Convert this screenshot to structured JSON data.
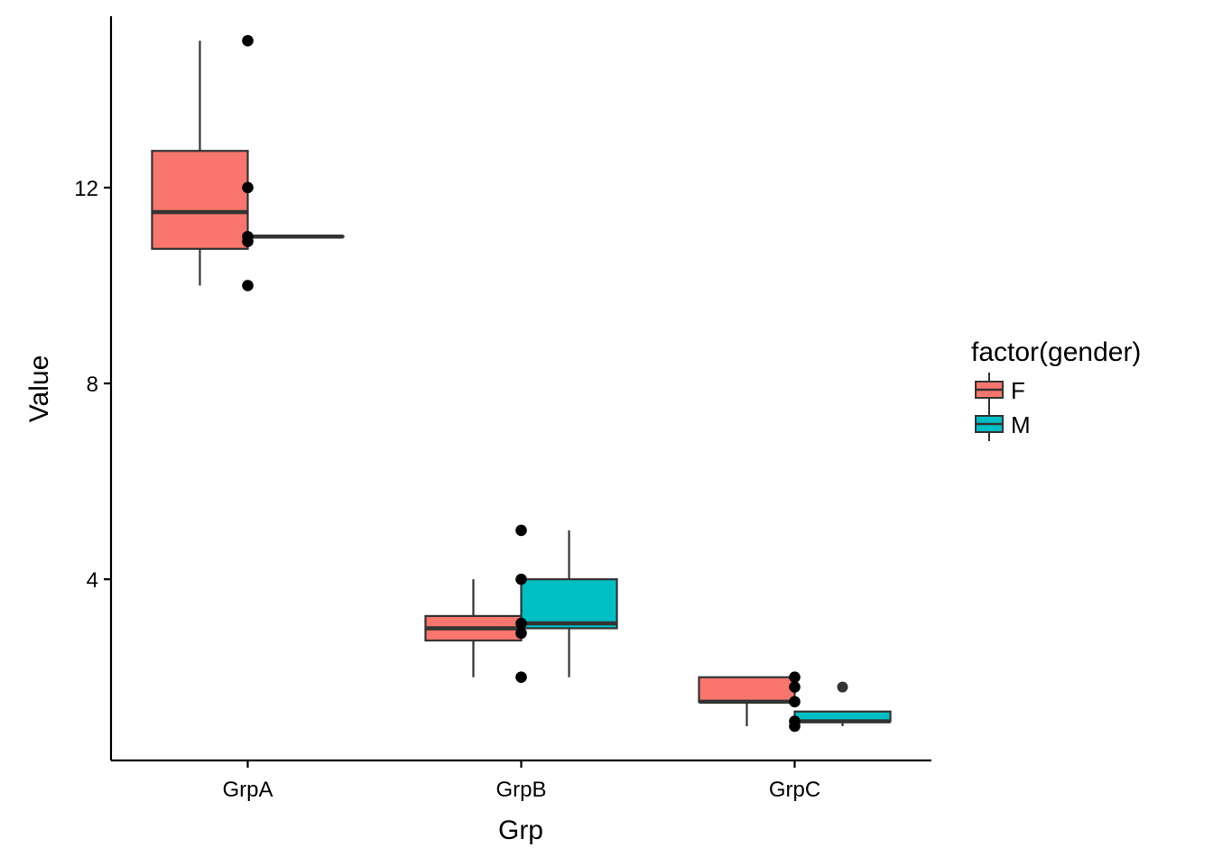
{
  "chart_data": {
    "type": "box",
    "xlabel": "Grp",
    "ylabel": "Value",
    "categories": [
      "GrpA",
      "GrpB",
      "GrpC"
    ],
    "ylim": [
      0.3,
      15.5
    ],
    "yticks": [
      4,
      8,
      12
    ],
    "legend": {
      "title": "factor(gender)",
      "position": "right",
      "entries": [
        {
          "name": "F",
          "color": "#F8766D"
        },
        {
          "name": "M",
          "color": "#00BFC4"
        }
      ]
    },
    "series": [
      {
        "name": "F",
        "color": "#F8766D",
        "boxes": [
          {
            "category": "GrpA",
            "min": 10,
            "q1": 10.75,
            "median": 11.5,
            "q3": 12.75,
            "max": 15
          },
          {
            "category": "GrpB",
            "min": 2,
            "q1": 2.75,
            "median": 3,
            "q3": 3.25,
            "max": 4
          },
          {
            "category": "GrpC",
            "min": 1,
            "q1": 1.5,
            "median": 1.5,
            "q3": 2,
            "max": 2
          }
        ]
      },
      {
        "name": "M",
        "color": "#00BFC4",
        "boxes": [
          {
            "category": "GrpA",
            "min": 11,
            "q1": 11,
            "median": 11,
            "q3": 11,
            "max": 11
          },
          {
            "category": "GrpB",
            "min": 2,
            "q1": 3,
            "median": 3.1,
            "q3": 4,
            "max": 5
          },
          {
            "category": "GrpC",
            "min": 1,
            "q1": 1.1,
            "median": 1.1,
            "q3": 1.3,
            "max": 1.3,
            "outliers": [
              1.8
            ]
          }
        ]
      }
    ],
    "points": [
      {
        "category": "GrpA",
        "y": 15
      },
      {
        "category": "GrpA",
        "y": 12
      },
      {
        "category": "GrpA",
        "y": 11
      },
      {
        "category": "GrpA",
        "y": 10.9
      },
      {
        "category": "GrpA",
        "y": 10
      },
      {
        "category": "GrpB",
        "y": 5
      },
      {
        "category": "GrpB",
        "y": 4
      },
      {
        "category": "GrpB",
        "y": 3.1
      },
      {
        "category": "GrpB",
        "y": 2.9
      },
      {
        "category": "GrpB",
        "y": 2
      },
      {
        "category": "GrpC",
        "y": 2
      },
      {
        "category": "GrpC",
        "y": 1.8
      },
      {
        "category": "GrpC",
        "y": 1.5
      },
      {
        "category": "GrpC",
        "y": 1.1
      },
      {
        "category": "GrpC",
        "y": 1
      }
    ],
    "grid": false
  }
}
